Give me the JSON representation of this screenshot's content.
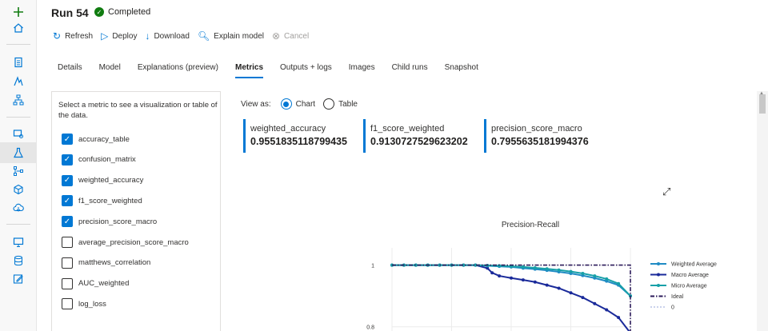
{
  "header": {
    "title": "Run 54",
    "status": "Completed"
  },
  "toolbar": {
    "refresh": "Refresh",
    "deploy": "Deploy",
    "download": "Download",
    "explain": "Explain model",
    "cancel": "Cancel"
  },
  "tabs": [
    {
      "label": "Details"
    },
    {
      "label": "Model"
    },
    {
      "label": "Explanations (preview)"
    },
    {
      "label": "Metrics"
    },
    {
      "label": "Outputs + logs"
    },
    {
      "label": "Images"
    },
    {
      "label": "Child runs"
    },
    {
      "label": "Snapshot"
    }
  ],
  "panel": {
    "hint": "Select a metric to see a visualization or table of the data.",
    "metrics": [
      {
        "label": "accuracy_table",
        "checked": true
      },
      {
        "label": "confusion_matrix",
        "checked": true
      },
      {
        "label": "weighted_accuracy",
        "checked": true
      },
      {
        "label": "f1_score_weighted",
        "checked": true
      },
      {
        "label": "precision_score_macro",
        "checked": true
      },
      {
        "label": "average_precision_score_macro",
        "checked": false
      },
      {
        "label": "matthews_correlation",
        "checked": false
      },
      {
        "label": "AUC_weighted",
        "checked": false
      },
      {
        "label": "log_loss",
        "checked": false
      }
    ]
  },
  "view": {
    "label": "View as:",
    "chart": "Chart",
    "table": "Table",
    "selected": "Chart"
  },
  "cards": [
    {
      "name": "weighted_accuracy",
      "value": "0.9551835118799435"
    },
    {
      "name": "f1_score_weighted",
      "value": "0.9130727529623202"
    },
    {
      "name": "precision_score_macro",
      "value": "0.7955635181994376"
    }
  ],
  "chart_data": {
    "type": "line",
    "title": "Precision-Recall",
    "yticks": [
      "1",
      "0.8"
    ],
    "ylim": [
      0.75,
      1.03
    ],
    "xlim": [
      0,
      1
    ],
    "legend_placement": "right",
    "series": [
      {
        "name": "Weighted Average",
        "color": "#1f8bc4",
        "x": [
          0,
          0.05,
          0.1,
          0.15,
          0.2,
          0.25,
          0.3,
          0.35,
          0.4,
          0.45,
          0.5,
          0.55,
          0.6,
          0.65,
          0.7,
          0.75,
          0.8,
          0.85,
          0.9,
          0.95,
          1.0
        ],
        "y": [
          1.0,
          1.0,
          1.0,
          1.0,
          1.0,
          1.0,
          1.0,
          1.0,
          0.998,
          0.996,
          0.994,
          0.99,
          0.987,
          0.983,
          0.978,
          0.973,
          0.966,
          0.958,
          0.948,
          0.935,
          0.9
        ]
      },
      {
        "name": "Macro Average",
        "color": "#1a2a9a",
        "x": [
          0,
          0.05,
          0.1,
          0.15,
          0.2,
          0.25,
          0.3,
          0.35,
          0.4,
          0.42,
          0.45,
          0.5,
          0.55,
          0.6,
          0.65,
          0.7,
          0.75,
          0.8,
          0.85,
          0.9,
          0.95,
          1.0
        ],
        "y": [
          1.0,
          1.0,
          1.0,
          1.0,
          1.0,
          1.0,
          1.0,
          1.0,
          0.99,
          0.975,
          0.965,
          0.958,
          0.952,
          0.945,
          0.935,
          0.925,
          0.91,
          0.895,
          0.875,
          0.855,
          0.83,
          0.78
        ]
      },
      {
        "name": "Micro Average",
        "color": "#17a0a8",
        "x": [
          0,
          0.05,
          0.1,
          0.15,
          0.2,
          0.25,
          0.3,
          0.35,
          0.4,
          0.45,
          0.5,
          0.55,
          0.6,
          0.65,
          0.7,
          0.75,
          0.8,
          0.85,
          0.9,
          0.95,
          1.0
        ],
        "y": [
          1.0,
          1.0,
          1.0,
          1.0,
          1.0,
          1.0,
          1.0,
          1.0,
          0.999,
          0.998,
          0.996,
          0.994,
          0.991,
          0.988,
          0.984,
          0.979,
          0.973,
          0.965,
          0.955,
          0.94,
          0.9
        ]
      },
      {
        "name": "Ideal",
        "color": "#2b1a5a",
        "x": [
          0,
          1,
          1
        ],
        "y": [
          1.0,
          1.0,
          0.75
        ]
      },
      {
        "name": "0",
        "color": "#b8c4e6",
        "x": [],
        "y": []
      }
    ]
  }
}
